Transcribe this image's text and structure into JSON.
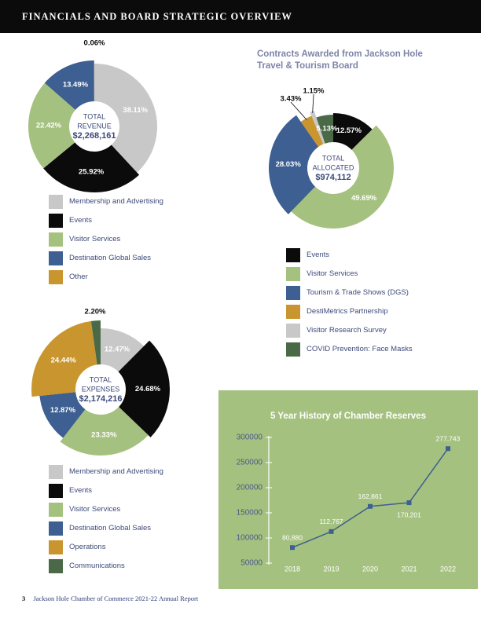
{
  "header": {
    "title": "FINANCIALS AND BOARD STRATEGIC OVERVIEW"
  },
  "colors": {
    "gray": "#c8c8c8",
    "black": "#0b0b0b",
    "green": "#a5c17f",
    "blue": "#3d5f91",
    "gold": "#c9952e",
    "darkgreen": "#4a6a47",
    "lightgray": "#cfcfcf",
    "center_text": "#3d4a7a"
  },
  "revenue": {
    "center_lines": [
      "TOTAL",
      "REVENUE",
      "$2,268,161"
    ],
    "legend": [
      {
        "label": "Membership and Advertising",
        "color": "#c8c8c8"
      },
      {
        "label": "Events",
        "color": "#0b0b0b"
      },
      {
        "label": "Visitor Services",
        "color": "#a5c17f"
      },
      {
        "label": "Destination Global Sales",
        "color": "#3d5f91"
      },
      {
        "label": "Other",
        "color": "#c9952e"
      }
    ]
  },
  "expenses": {
    "center_lines": [
      "TOTAL",
      "EXPENSES",
      "$2,174,216"
    ],
    "legend": [
      {
        "label": "Membership and Advertising",
        "color": "#c8c8c8"
      },
      {
        "label": "Events",
        "color": "#0b0b0b"
      },
      {
        "label": "Visitor Services",
        "color": "#a5c17f"
      },
      {
        "label": "Destination Global Sales",
        "color": "#3d5f91"
      },
      {
        "label": "Operations",
        "color": "#c9952e"
      },
      {
        "label": "Communications",
        "color": "#4a6a47"
      }
    ]
  },
  "contracts": {
    "title": "Contracts Awarded from Jackson Hole Travel & Tourism Board",
    "center_lines": [
      "TOTAL",
      "ALLOCATED",
      "$974,112"
    ],
    "legend": [
      {
        "label": "Events",
        "color": "#0b0b0b"
      },
      {
        "label": "Visitor Services",
        "color": "#a5c17f"
      },
      {
        "label": "Tourism & Trade Shows (DGS)",
        "color": "#3d5f91"
      },
      {
        "label": "DestiMetrics Partnership",
        "color": "#c9952e"
      },
      {
        "label": "Visitor Research Survey",
        "color": "#c8c8c8"
      },
      {
        "label": "COVID Prevention: Face Masks",
        "color": "#4a6a47"
      }
    ]
  },
  "reserves": {
    "title": "5 Year History of Chamber Reserves"
  },
  "footer": {
    "page": "3",
    "text": "Jackson Hole Chamber of Commerce 2021-22 Annual Report"
  },
  "chart_data": [
    {
      "type": "pie",
      "center_label": "TOTAL REVENUE $2,268,161",
      "slices": [
        {
          "label": "Membership and Advertising",
          "value": 38.11,
          "display": "38.11%",
          "color": "#c8c8c8"
        },
        {
          "label": "Events",
          "value": 25.92,
          "display": "25.92%",
          "color": "#0b0b0b"
        },
        {
          "label": "Visitor Services",
          "value": 22.42,
          "display": "22.42%",
          "color": "#a5c17f"
        },
        {
          "label": "Destination Global Sales",
          "value": 13.49,
          "display": "13.49%",
          "color": "#3d5f91"
        },
        {
          "label": "Other",
          "value": 0.06,
          "display": "0.06%",
          "color": "#c9952e"
        }
      ]
    },
    {
      "type": "pie",
      "title": "Contracts Awarded from Jackson Hole Travel & Tourism Board",
      "center_label": "TOTAL ALLOCATED $974,112",
      "slices": [
        {
          "label": "Events",
          "value": 12.57,
          "display": "12.57%",
          "color": "#0b0b0b"
        },
        {
          "label": "Visitor Services",
          "value": 49.69,
          "display": "49.69%",
          "color": "#a5c17f"
        },
        {
          "label": "Tourism & Trade Shows (DGS)",
          "value": 28.03,
          "display": "28.03%",
          "color": "#3d5f91"
        },
        {
          "label": "DestiMetrics Partnership",
          "value": 3.43,
          "display": "3.43%",
          "color": "#c9952e"
        },
        {
          "label": "Visitor Research Survey",
          "value": 1.15,
          "display": "1.15%",
          "color": "#c8c8c8"
        },
        {
          "label": "COVID Prevention: Face Masks",
          "value": 5.13,
          "display": "5.13%",
          "color": "#4a6a47"
        }
      ]
    },
    {
      "type": "pie",
      "center_label": "TOTAL EXPENSES $2,174,216",
      "slices": [
        {
          "label": "Membership and Advertising",
          "value": 12.47,
          "display": "12.47%",
          "color": "#c8c8c8"
        },
        {
          "label": "Events",
          "value": 24.68,
          "display": "24.68%",
          "color": "#0b0b0b"
        },
        {
          "label": "Visitor Services",
          "value": 23.33,
          "display": "23.33%",
          "color": "#a5c17f"
        },
        {
          "label": "Destination Global Sales",
          "value": 12.87,
          "display": "12.87%",
          "color": "#3d5f91"
        },
        {
          "label": "Operations",
          "value": 24.44,
          "display": "24.44%",
          "color": "#c9952e"
        },
        {
          "label": "Communications",
          "value": 2.2,
          "display": "2.20%",
          "color": "#4a6a47"
        }
      ]
    },
    {
      "type": "line",
      "title": "5 Year History of Chamber Reserves",
      "x": [
        "2018",
        "2019",
        "2020",
        "2021",
        "2022"
      ],
      "series": [
        {
          "values": [
            80880,
            112767,
            162861,
            170201,
            277743
          ],
          "labels": [
            "80,880",
            "112,767",
            "162,861",
            "170,201",
            "277,743"
          ]
        }
      ],
      "y_ticks": [
        "300000",
        "250000",
        "200000",
        "150000",
        "100000",
        "50000"
      ],
      "ylim": [
        50000,
        300000
      ],
      "grid": false,
      "line_color": "#3d5f91"
    }
  ]
}
